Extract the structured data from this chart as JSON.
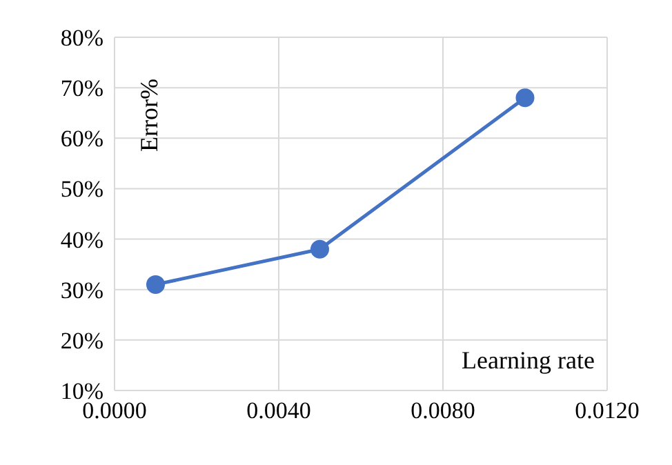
{
  "chart_data": {
    "type": "line",
    "xlabel": "Learning rate",
    "ylabel": "Error%",
    "x": [
      0.001,
      0.005,
      0.01
    ],
    "series": [
      {
        "color": "#4472c4",
        "values": [
          31,
          38,
          68
        ]
      }
    ],
    "xlim": [
      0,
      0.012
    ],
    "xticks": [
      {
        "value": 0,
        "label": "0.0000"
      },
      {
        "value": 0.004,
        "label": "0.0040"
      },
      {
        "value": 0.008,
        "label": "0.0080"
      },
      {
        "value": 0.012,
        "label": "0.0120"
      }
    ],
    "ylim": [
      10,
      80
    ],
    "yticks": [
      {
        "value": 10,
        "label": "10%"
      },
      {
        "value": 20,
        "label": "20%"
      },
      {
        "value": 30,
        "label": "30%"
      },
      {
        "value": 40,
        "label": "40%"
      },
      {
        "value": 50,
        "label": "50%"
      },
      {
        "value": 60,
        "label": "60%"
      },
      {
        "value": 70,
        "label": "70%"
      },
      {
        "value": 80,
        "label": "80%"
      }
    ],
    "grid": true,
    "marker": "circle",
    "line_style": "solid"
  }
}
